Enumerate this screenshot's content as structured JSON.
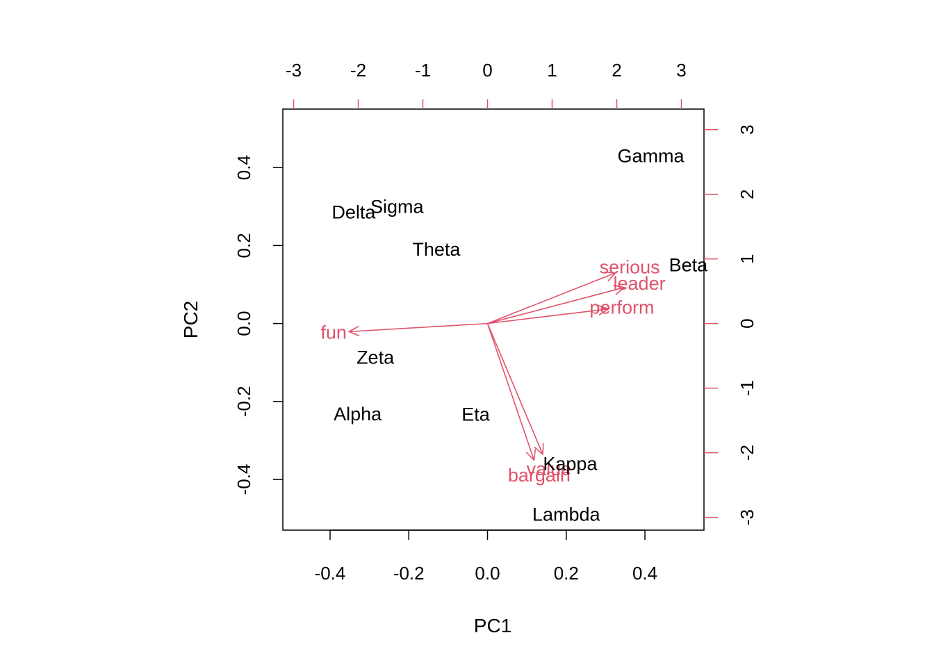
{
  "chart_data": {
    "type": "scatter",
    "subtype": "biplot",
    "xlabel": "PC1",
    "ylabel": "PC2",
    "xlim": [
      -0.52,
      0.55
    ],
    "ylim": [
      -0.53,
      0.55
    ],
    "x_ticks": [
      "-0.4",
      "-0.2",
      "0.0",
      "0.2",
      "0.4"
    ],
    "y_ticks": [
      "-0.4",
      "-0.2",
      "0.0",
      "0.2",
      "0.4"
    ],
    "top_axis_ticks": [
      "-3",
      "-2",
      "-1",
      "0",
      "1",
      "2",
      "3"
    ],
    "right_axis_ticks": [
      "-3",
      "-2",
      "-1",
      "0",
      "1",
      "2",
      "3"
    ],
    "secondary_axis_color": "#DF536B",
    "observations": [
      {
        "label": "Gamma",
        "x": 0.415,
        "y": 0.43
      },
      {
        "label": "Sigma",
        "x": -0.23,
        "y": 0.3
      },
      {
        "label": "Delta",
        "x": -0.34,
        "y": 0.285
      },
      {
        "label": "Theta",
        "x": -0.13,
        "y": 0.19
      },
      {
        "label": "Beta",
        "x": 0.51,
        "y": 0.15
      },
      {
        "label": "Zeta",
        "x": -0.285,
        "y": -0.087
      },
      {
        "label": "Alpha",
        "x": -0.33,
        "y": -0.232
      },
      {
        "label": "Eta",
        "x": -0.03,
        "y": -0.233
      },
      {
        "label": "Kappa",
        "x": 0.21,
        "y": -0.36
      },
      {
        "label": "Lambda",
        "x": 0.2,
        "y": -0.49
      }
    ],
    "loadings_color": "#DF536B",
    "loadings": [
      {
        "label": "serious",
        "x": 2.2,
        "y": 0.87
      },
      {
        "label": "leader",
        "x": 2.35,
        "y": 0.62
      },
      {
        "label": "perform",
        "x": 2.08,
        "y": 0.25
      },
      {
        "label": "fun",
        "x": -2.38,
        "y": -0.14
      },
      {
        "label": "value",
        "x": 0.95,
        "y": -2.25
      },
      {
        "label": "bargain",
        "x": 0.8,
        "y": -2.35
      }
    ]
  }
}
